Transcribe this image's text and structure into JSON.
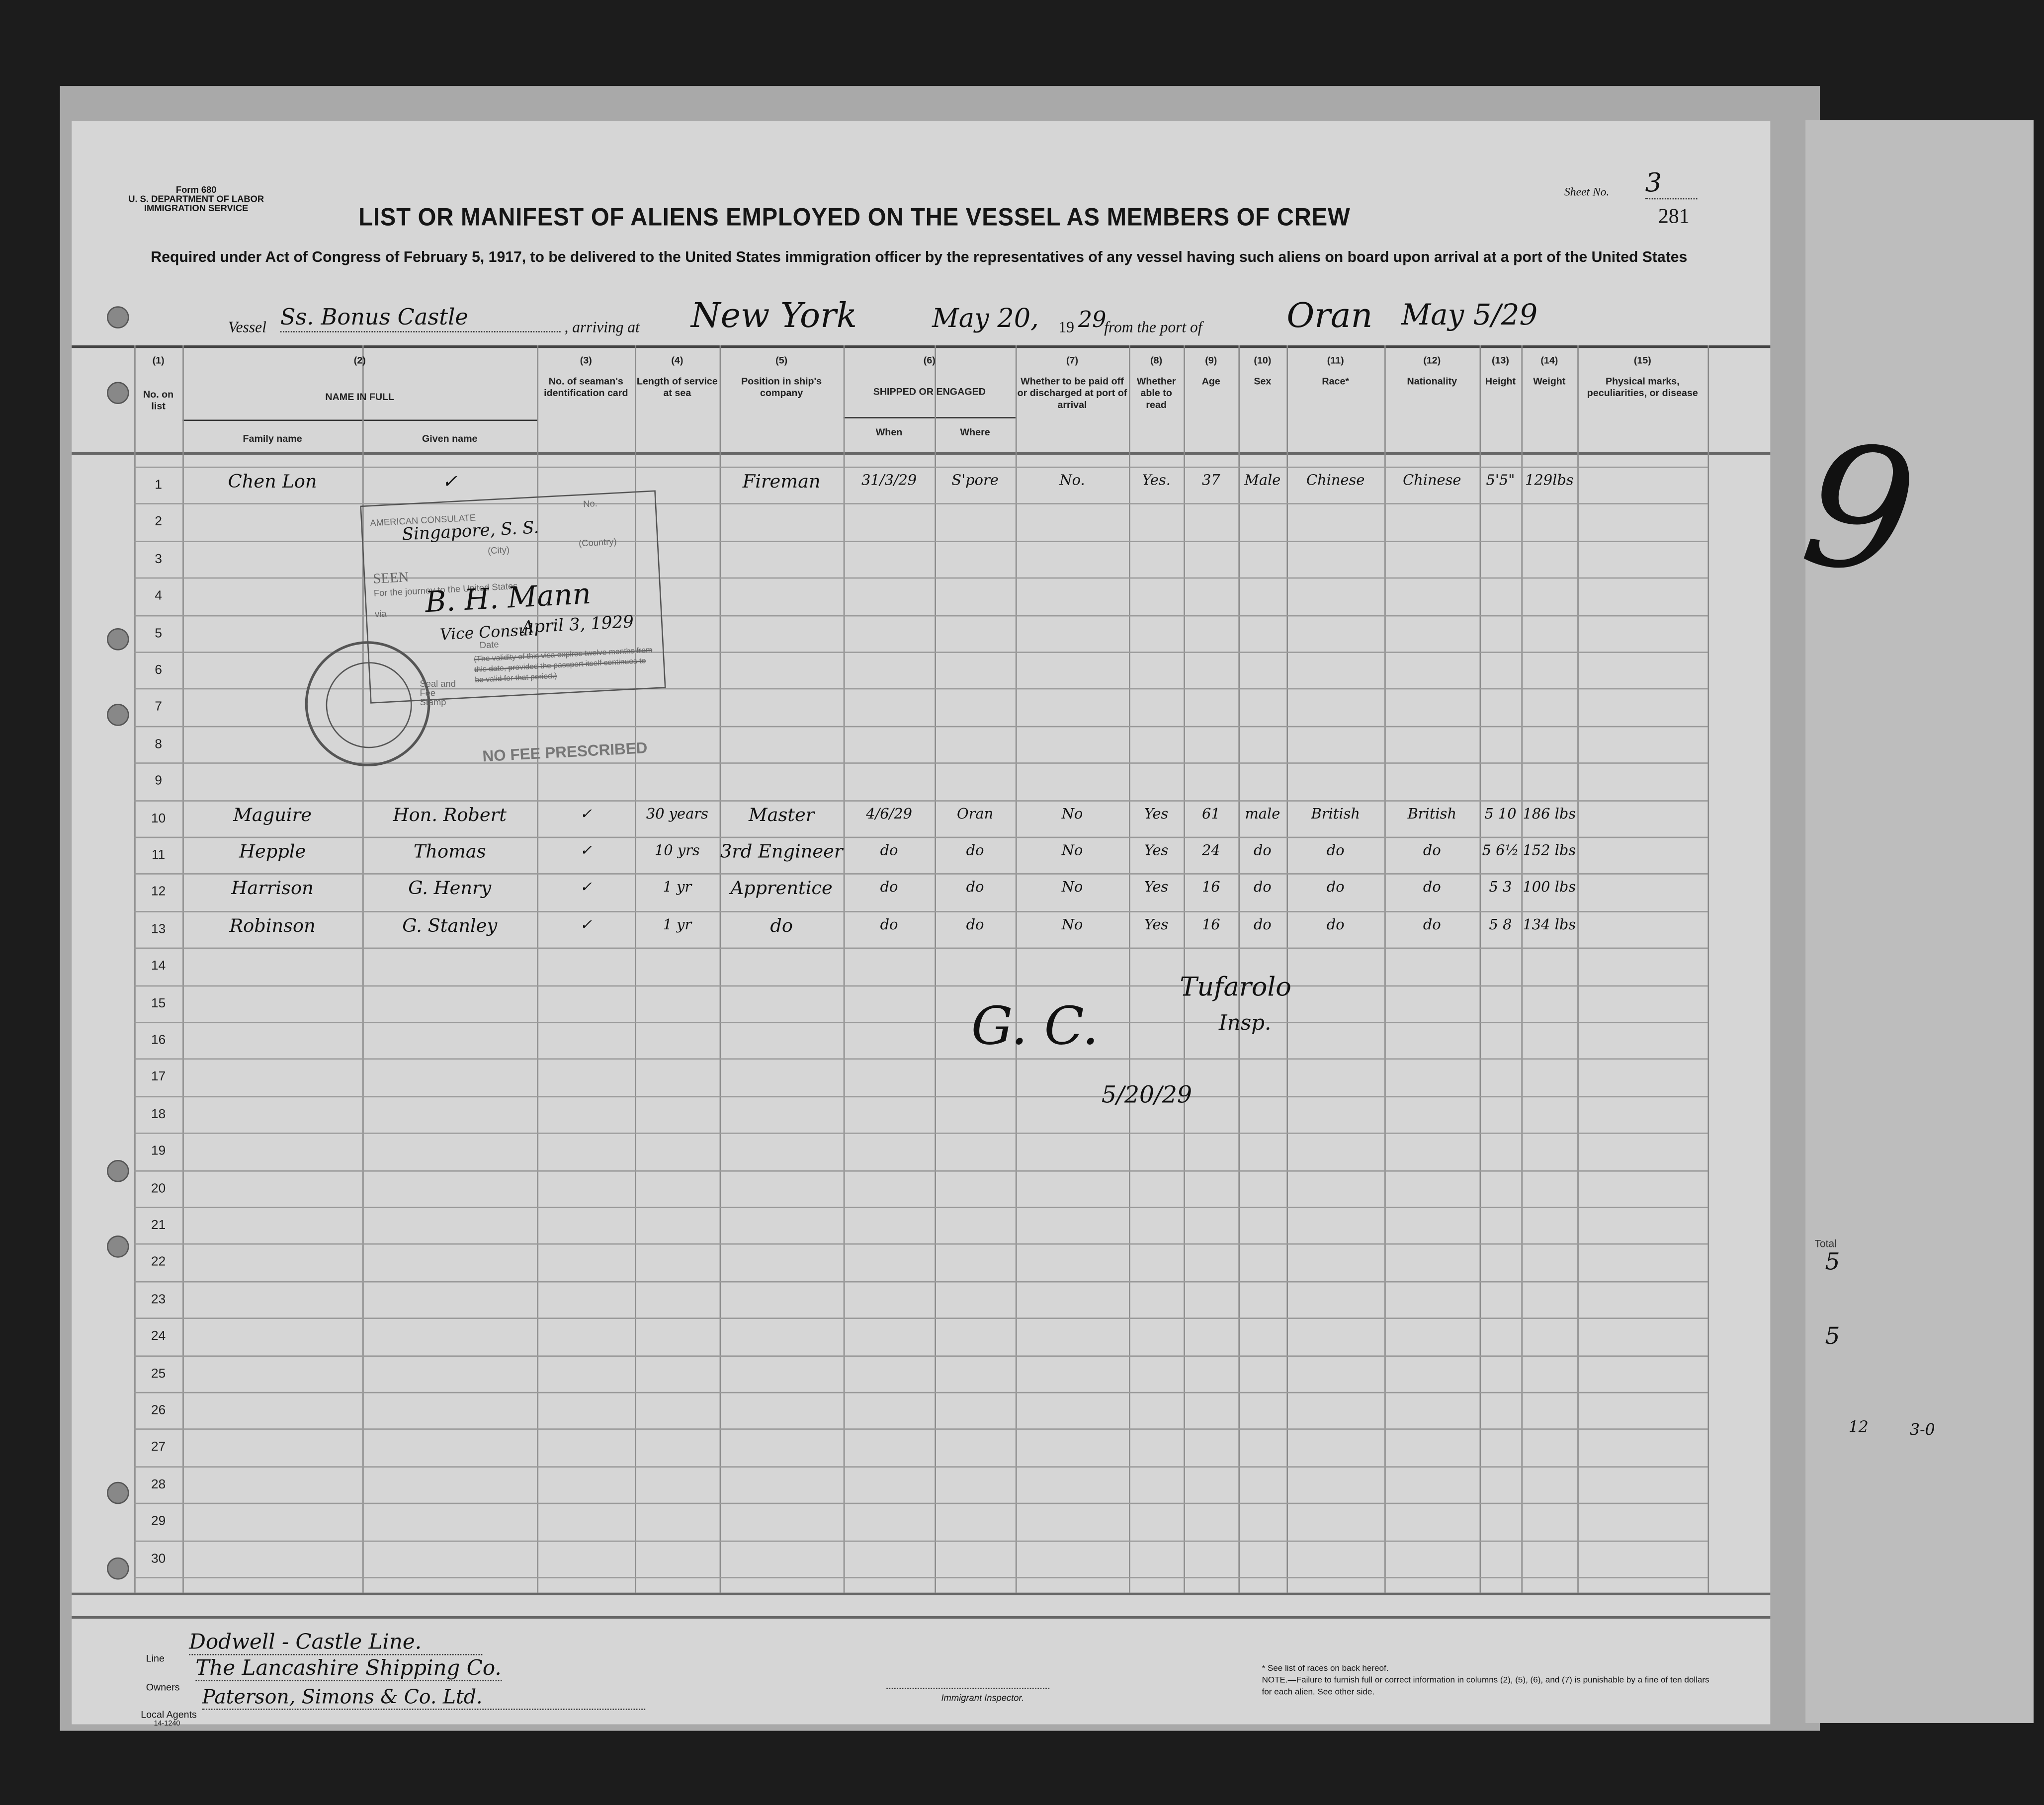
{
  "form": {
    "number": "Form 680",
    "department": "U. S. DEPARTMENT OF LABOR",
    "service": "IMMIGRATION SERVICE",
    "code": "14-1240"
  },
  "sheet": {
    "label": "Sheet No.",
    "value": "3",
    "page_number": "281"
  },
  "title": "LIST OR MANIFEST OF ALIENS EMPLOYED ON THE VESSEL AS MEMBERS OF CREW",
  "subtitle": "Required under Act of Congress of February 5, 1917, to be delivered to the United States immigration officer by the representatives of any vessel having such aliens on board upon arrival at a port of the United States",
  "vessel": {
    "vessel_label": "Vessel",
    "vessel_name": "Ss. Bonus Castle",
    "arriving_label": ", arriving at",
    "arriving_port": "New York",
    "date": "May 20,",
    "year_prefix": "19",
    "year_suffix": "29",
    "from_label": "from the port of",
    "from_port": "Oran",
    "from_date": "May 5/29"
  },
  "columns": [
    {
      "num": "(1)",
      "label": "No. on list"
    },
    {
      "num": "(2)",
      "label": "NAME IN FULL",
      "sub": [
        "Family name",
        "Given name"
      ]
    },
    {
      "num": "(3)",
      "label": "No. of seaman's identification card"
    },
    {
      "num": "(4)",
      "label": "Length of service at sea"
    },
    {
      "num": "(5)",
      "label": "Position in ship's company"
    },
    {
      "num": "(6)",
      "label": "SHIPPED OR ENGAGED",
      "sub": [
        "When",
        "Where"
      ]
    },
    {
      "num": "(7)",
      "label": "Whether to be paid off or discharged at port of arrival"
    },
    {
      "num": "(8)",
      "label": "Whether able to read"
    },
    {
      "num": "(9)",
      "label": "Age"
    },
    {
      "num": "(10)",
      "label": "Sex"
    },
    {
      "num": "(11)",
      "label": "Race*"
    },
    {
      "num": "(12)",
      "label": "Nationality"
    },
    {
      "num": "(13)",
      "label": "Height"
    },
    {
      "num": "(14)",
      "label": "Weight"
    },
    {
      "num": "(15)",
      "label": "Physical marks, peculiarities, or disease"
    }
  ],
  "rows": [
    {
      "no": "1",
      "family": "Chen Lon",
      "given": "✓",
      "card": "",
      "length": "",
      "position": "Fireman",
      "when": "31/3/29",
      "where": "S'pore",
      "paid": "No.",
      "read": "Yes.",
      "age": "37",
      "sex": "Male",
      "race": "Chinese",
      "nationality": "Chinese",
      "height": "5'5\"",
      "weight": "129lbs",
      "marks": ""
    },
    {
      "no": "10",
      "family": "Maguire",
      "given": "Hon. Robert",
      "card": "✓",
      "length": "30 years",
      "position": "Master",
      "when": "4/6/29",
      "where": "Oran",
      "paid": "No",
      "read": "Yes",
      "age": "61",
      "sex": "male",
      "race": "British",
      "nationality": "British",
      "height": "5 10",
      "weight": "186 lbs",
      "marks": ""
    },
    {
      "no": "11",
      "family": "Hepple",
      "given": "Thomas",
      "card": "✓",
      "length": "10 yrs",
      "position": "3rd Engineer",
      "when": "do",
      "where": "do",
      "paid": "No",
      "read": "Yes",
      "age": "24",
      "sex": "do",
      "race": "do",
      "nationality": "do",
      "height": "5 6½",
      "weight": "152 lbs",
      "marks": ""
    },
    {
      "no": "12",
      "family": "Harrison",
      "given": "G. Henry",
      "card": "✓",
      "length": "1 yr",
      "position": "Apprentice",
      "when": "do",
      "where": "do",
      "paid": "No",
      "read": "Yes",
      "age": "16",
      "sex": "do",
      "race": "do",
      "nationality": "do",
      "height": "5 3",
      "weight": "100 lbs",
      "marks": ""
    },
    {
      "no": "13",
      "family": "Robinson",
      "given": "G. Stanley",
      "card": "✓",
      "length": "1 yr",
      "position": "do",
      "when": "do",
      "where": "do",
      "paid": "No",
      "read": "Yes",
      "age": "16",
      "sex": "do",
      "race": "do",
      "nationality": "do",
      "height": "5 8",
      "weight": "134 lbs",
      "marks": ""
    }
  ],
  "row_count": 30,
  "stamp": {
    "consulate": "AMERICAN CONSULATE",
    "at": "Singapore, S. S.",
    "city": "(City)",
    "country": "(Country)",
    "no": "No.",
    "seen": "SEEN",
    "journey": "For the journey to the United States",
    "via": "via",
    "signature": "B. H. Mann",
    "title": "Vice Consul",
    "date_label": "Date",
    "date": "April 3, 1929",
    "validity": "(The validity of this visa expires twelve months from this date, provided the passport itself continues to be valid for that period.)",
    "seal": "American Consulate General Singapore Straits Settlements",
    "seal_label": "Seal and Fee Stamp",
    "no_fee": "NO FEE PRESCRIBED"
  },
  "inspector": {
    "initials": "G. C.",
    "name": "Tufarolo",
    "title": "Insp.",
    "date": "5/20/29",
    "label": "Immigrant Inspector."
  },
  "footer": {
    "line_label": "Line",
    "line_value": "Dodwell - Castle Line.",
    "owners_label": "Owners",
    "owners_value": "The Lancashire Shipping Co.",
    "agents_label": "Local Agents",
    "agents_value": "Paterson, Simons & Co. Ltd.",
    "note_race": "* See list of races on back hereof.",
    "note": "NOTE.—Failure to furnish full or correct information in columns (2), (5), (6), and (7) is punishable by a fine of ten dollars for each alien. See other side."
  },
  "margin_notes": {
    "big_mark": "9",
    "total_label": "Total",
    "total_1": "5",
    "total_2": "5",
    "note_a": "12",
    "note_b": "3-0"
  }
}
